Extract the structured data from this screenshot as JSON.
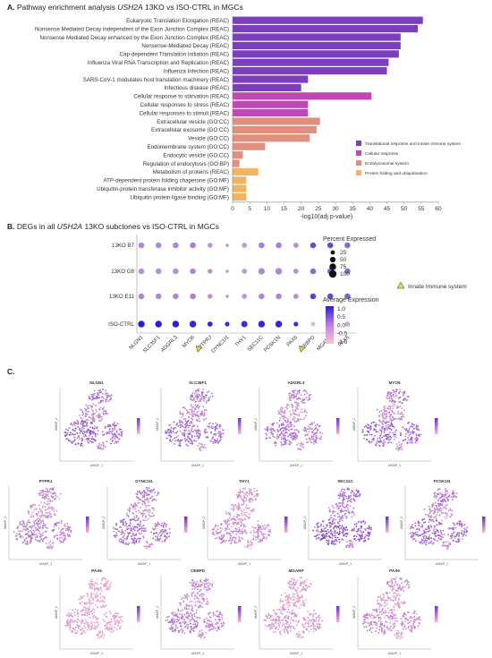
{
  "panels": {
    "a": {
      "letter": "A.",
      "title_pre": "Pathway enrichment analysis ",
      "title_gene": "USH2A",
      "title_post": " 13KO vs ISO-CTRL in MGCs"
    },
    "b": {
      "letter": "B.",
      "title_pre": "DEGs in all ",
      "title_gene": "USH2A",
      "title_post": " 13KO subclones vs ISO-CTRL in MGCs"
    },
    "c": {
      "letter": "C."
    }
  },
  "chart_data": [
    {
      "type": "bar",
      "orientation": "horizontal",
      "categories": [
        "Eukaryotic Translation Elongation (REAC)",
        "Nonsense Mediated Decay independent of the Exon Junction Complex (REAC)",
        "Nonsense Mediated Decay enhanced by the Exon Junction Complex (REAC)",
        "Nonsense-Mediated Decay (REAC)",
        "Cap-dependent Translation Initiation (REAC)",
        "Influenza Viral RNA Transcription and Replication (REAC)",
        "Influenza Infection (REAC)",
        "SARS-CoV-1 modulates host translation machinery (REAC)",
        "Infectious disease (REAC)",
        "Cellular response to starvation (REAC)",
        "Cellular responses to stress (REAC)",
        "Cellular responses to stimuli (REAC)",
        "Extracellular vesicle (GO:CC)",
        "Extracellular exosome (GO:CC)",
        "Vesicle (GO:CC)",
        "Endomembrane system (GO:CC)",
        "Endocytic vesicle (GO:CC)",
        "Regulation of endocytosis (GO:BP)",
        "Metabolism of proteins (REAC)",
        "ATP-dependent protein folding chaperone (GO:MF)",
        "Ubiquitin-protein transferase inhibitor activity (GO:MF)",
        "Ubiquitin protein ligase binding (GO:MF)"
      ],
      "values": [
        55.5,
        54,
        49,
        49,
        48.5,
        45.5,
        45,
        22,
        20,
        40.5,
        22,
        22,
        25.5,
        24.5,
        22.5,
        9.5,
        3,
        2,
        7.5,
        4,
        4,
        4
      ],
      "groups": [
        0,
        0,
        0,
        0,
        0,
        0,
        0,
        0,
        0,
        1,
        1,
        1,
        2,
        2,
        2,
        2,
        2,
        2,
        3,
        3,
        3,
        3
      ],
      "xlabel": "-log10(adj p-value)",
      "xlim": [
        0,
        60
      ],
      "xticks": [
        0,
        5,
        10,
        15,
        20,
        25,
        30,
        35,
        40,
        45,
        50,
        55,
        60
      ],
      "legend": {
        "position": "bottom-right",
        "entries": [
          {
            "name": "Translational response and innate immune system",
            "color": "#7b3fbe"
          },
          {
            "name": "Cellular response",
            "color": "#c048b4"
          },
          {
            "name": "Endolysosomal system",
            "color": "#e0907e"
          },
          {
            "name": "Protein folding and ubiquitination",
            "color": "#f2b463"
          }
        ]
      }
    },
    {
      "type": "dot",
      "genes": [
        "NLGN1",
        "SLC35F1",
        "ADGRL3",
        "MYO6",
        "PTPRJ",
        "DYNC1I1",
        "THY1",
        "SEC11C",
        "PCSK1N",
        "PAX6",
        "CEBPD",
        "MGARP",
        "PAX6"
      ],
      "flagged_genes": [
        4,
        10
      ],
      "groups": [
        "13KO B7",
        "13KO G8",
        "13KO E11",
        "ISO-CTRL"
      ],
      "percent_expressed": [
        [
          55,
          55,
          55,
          55,
          35,
          10,
          40,
          55,
          55,
          40,
          55,
          55,
          55
        ],
        [
          55,
          55,
          55,
          55,
          35,
          10,
          40,
          70,
          75,
          40,
          55,
          55,
          55
        ],
        [
          55,
          55,
          55,
          55,
          35,
          10,
          40,
          55,
          55,
          40,
          55,
          55,
          55
        ],
        [
          75,
          75,
          75,
          75,
          40,
          30,
          65,
          75,
          75,
          30,
          25,
          25,
          40
        ]
      ],
      "avg_expression": [
        [
          -0.3,
          -0.3,
          -0.3,
          -0.2,
          -0.4,
          -0.4,
          -0.5,
          -0.2,
          -0.2,
          -0.4,
          0.5,
          0.5,
          0.1
        ],
        [
          -0.4,
          -0.4,
          -0.4,
          -0.3,
          -0.4,
          -0.5,
          -0.5,
          -0.3,
          -0.3,
          -0.4,
          0.1,
          0.2,
          0.1
        ],
        [
          -0.3,
          -0.3,
          -0.3,
          -0.2,
          -0.4,
          -0.4,
          -0.5,
          -0.3,
          -0.3,
          -0.4,
          0.6,
          0.5,
          0.2
        ],
        [
          1.1,
          1.1,
          1.1,
          1.0,
          1.0,
          0.9,
          0.9,
          1.0,
          1.0,
          0.9,
          -0.9,
          -0.9,
          -0.7
        ]
      ],
      "size_legend": {
        "title": "Percent Expressed",
        "values": [
          25,
          50,
          75,
          100
        ]
      },
      "color_legend": {
        "title": "Average Expression",
        "ticks": [
          "1.0",
          "0.5",
          "0.0",
          "-0.5",
          "-1.0"
        ],
        "low": "#f7c6d6",
        "high": "#2b1ed1"
      },
      "annotation": "Innate Immune system"
    },
    {
      "type": "scatter",
      "subtype": "umap_grid",
      "xlabel": "UMAP_1",
      "ylabel": "UMAP_2",
      "plots": [
        {
          "gene": "NLGN1",
          "level": 0.65
        },
        {
          "gene": "SLC35F1",
          "level": 0.6
        },
        {
          "gene": "ADGRL3",
          "level": 0.5
        },
        {
          "gene": "MYO6",
          "level": 0.6
        },
        {
          "gene": "PTPRJ",
          "level": 0.45
        },
        {
          "gene": "DYNC1I1",
          "level": 0.55
        },
        {
          "gene": "THY1",
          "level": 0.35
        },
        {
          "gene": "SEC11C",
          "level": 0.75
        },
        {
          "gene": "PCSK1N",
          "level": 0.6
        },
        {
          "gene": "PAX6",
          "level": 0.2
        },
        {
          "gene": "CEBPD",
          "level": 0.45
        },
        {
          "gene": "MGARP",
          "level": 0.25
        },
        {
          "gene": "PAX6",
          "level": 0.35
        }
      ]
    }
  ]
}
